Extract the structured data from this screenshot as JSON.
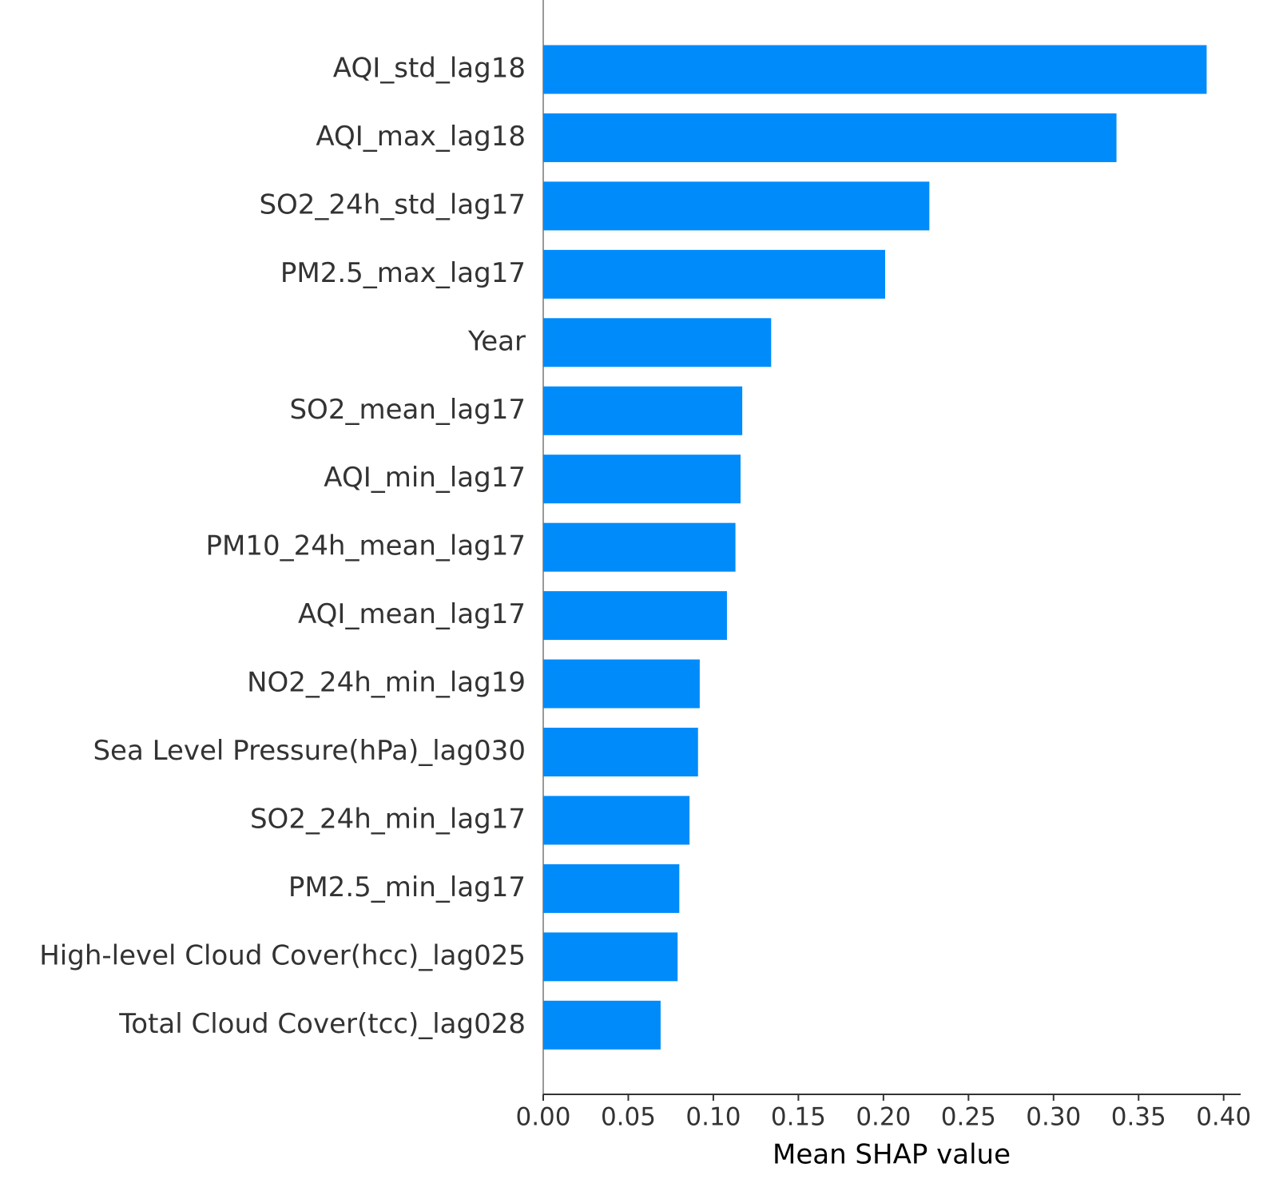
{
  "chart_data": {
    "type": "barh",
    "x_label": "Mean SHAP value",
    "categories": [
      "AQI_std_lag18",
      "AQI_max_lag18",
      "SO2_24h_std_lag17",
      "PM2.5_max_lag17",
      "Year",
      "SO2_mean_lag17",
      "AQI_min_lag17",
      "PM10_24h_mean_lag17",
      "AQI_mean_lag17",
      "NO2_24h_min_lag19",
      "Sea Level Pressure(hPa)_lag030",
      "SO2_24h_min_lag17",
      "PM2.5_min_lag17",
      "High-level Cloud Cover(hcc)_lag025",
      "Total Cloud Cover(tcc)_lag028"
    ],
    "values": [
      0.39,
      0.337,
      0.227,
      0.201,
      0.134,
      0.117,
      0.116,
      0.113,
      0.108,
      0.092,
      0.091,
      0.086,
      0.08,
      0.079,
      0.069
    ],
    "color": "#008bfb",
    "xlim": [
      0,
      0.41
    ],
    "xticks": [
      {
        "value": 0,
        "label": "0.00"
      },
      0.05,
      {
        "value": 0.1,
        "label": "0.10"
      },
      0.15,
      {
        "value": 0.2,
        "label": "0.20"
      },
      0.25,
      {
        "value": 0.3,
        "label": "0.30"
      },
      0.35,
      {
        "value": 0.4,
        "label": "0.40"
      }
    ]
  }
}
